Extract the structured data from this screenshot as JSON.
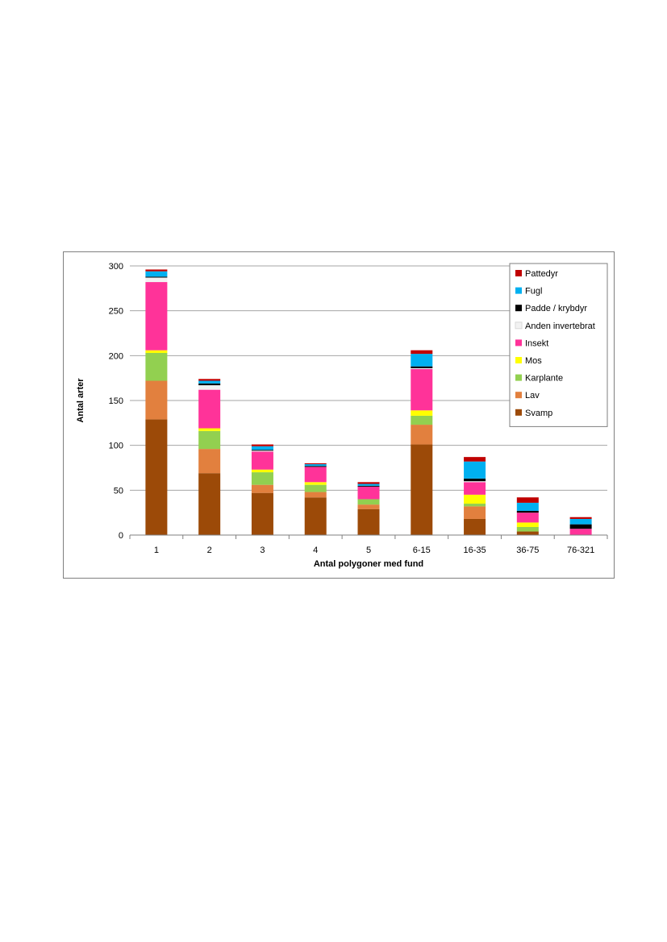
{
  "chart_data": {
    "type": "bar",
    "stacked": true,
    "title": "",
    "xlabel": "Antal polygoner med fund",
    "ylabel": "Antal arter",
    "ylim": [
      0,
      300
    ],
    "yticks": [
      0,
      50,
      100,
      150,
      200,
      250,
      300
    ],
    "grid": true,
    "legend_position": "top-right",
    "categories": [
      "1",
      "2",
      "3",
      "4",
      "5",
      "6-15",
      "16-35",
      "36-75",
      "76-321"
    ],
    "series": [
      {
        "name": "Svamp",
        "color": "#9c4a08",
        "values": [
          129,
          69,
          47,
          42,
          29,
          101,
          18,
          4,
          0
        ]
      },
      {
        "name": "Lav",
        "color": "#e2803e",
        "values": [
          43,
          27,
          9,
          6,
          5,
          22,
          14,
          0,
          0
        ]
      },
      {
        "name": "Karplante",
        "color": "#92d050",
        "values": [
          31,
          20,
          14,
          8,
          6,
          10,
          3,
          5,
          0
        ]
      },
      {
        "name": "Mos",
        "color": "#ffff00",
        "values": [
          3,
          3,
          3,
          3,
          0,
          6,
          10,
          5,
          0
        ]
      },
      {
        "name": "Insekt",
        "color": "#ff3399",
        "values": [
          76,
          43,
          20,
          17,
          14,
          46,
          14,
          11,
          7
        ]
      },
      {
        "name": "Anden invertebrat",
        "color": "#f2f2f2",
        "values": [
          5,
          5,
          1,
          0,
          0,
          1,
          1,
          0,
          0
        ]
      },
      {
        "name": "Padde / krybdyr",
        "color": "#000000",
        "values": [
          1,
          2,
          1,
          1,
          1,
          2,
          3,
          2,
          5
        ]
      },
      {
        "name": "Fugl",
        "color": "#00b0f0",
        "values": [
          6,
          3,
          4,
          2,
          2,
          14,
          19,
          9,
          6
        ]
      },
      {
        "name": "Pattedyr",
        "color": "#c00000",
        "values": [
          2,
          2,
          2,
          1,
          2,
          4,
          5,
          6,
          2
        ]
      }
    ]
  }
}
